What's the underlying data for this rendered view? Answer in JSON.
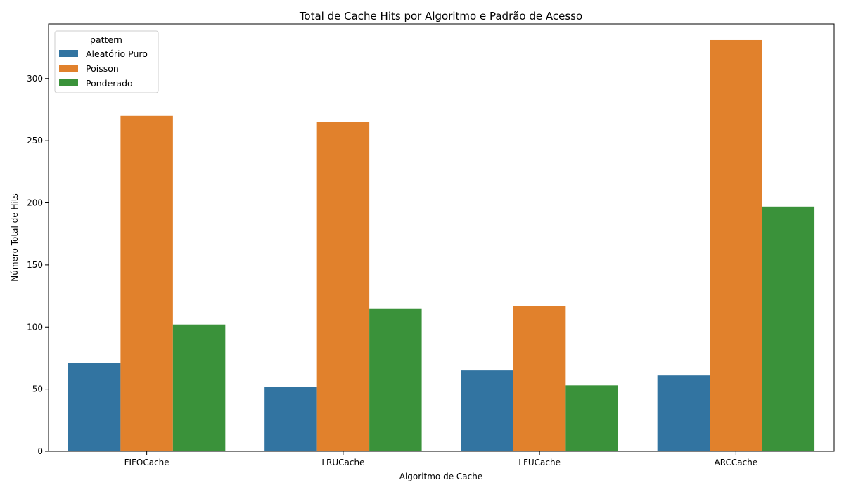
{
  "chart_data": {
    "type": "bar",
    "title": "Total de Cache Hits por Algoritmo e Padrão de Acesso",
    "xlabel": "Algoritmo de Cache",
    "ylabel": "Número Total de Hits",
    "categories": [
      "FIFOCache",
      "LRUCache",
      "LFUCache",
      "ARCCache"
    ],
    "series": [
      {
        "name": "Aleatório Puro",
        "color": "#3274a1",
        "values": [
          71,
          52,
          65,
          61
        ]
      },
      {
        "name": "Poisson",
        "color": "#e1812c",
        "values": [
          270,
          265,
          117,
          331
        ]
      },
      {
        "name": "Ponderado",
        "color": "#3a923a",
        "values": [
          102,
          115,
          53,
          197
        ]
      }
    ],
    "ylim": [
      0,
      344
    ],
    "yticks": [
      0,
      50,
      100,
      150,
      200,
      250,
      300
    ],
    "grid": false,
    "legend": {
      "title": "pattern",
      "position": "top-left"
    }
  }
}
